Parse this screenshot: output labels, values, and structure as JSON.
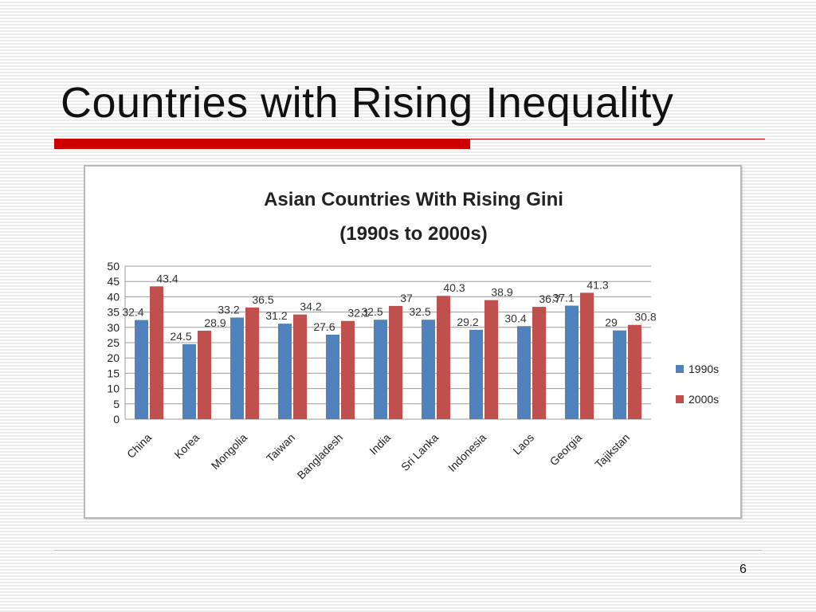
{
  "slide": {
    "title": "Countries with Rising Inequality",
    "page_number": "6"
  },
  "colors": {
    "accent_red": "#cc0000",
    "series_1990s": "#4f81bd",
    "series_2000s": "#c0504d"
  },
  "chart_data": {
    "type": "bar",
    "title": "Asian Countries With Rising Gini",
    "subtitle": "(1990s to 2000s)",
    "xlabel": "",
    "ylabel": "",
    "categories": [
      "China",
      "Korea",
      "Mongolia",
      "Taiwan",
      "Bangladesh",
      "India",
      "Sri Lanka",
      "Indonesia",
      "Laos",
      "Georgia",
      "Tajikstan"
    ],
    "series": [
      {
        "name": "1990s",
        "color": "#4f81bd",
        "values": [
          32.4,
          24.5,
          33.2,
          31.2,
          27.6,
          32.5,
          32.5,
          29.2,
          30.4,
          37.1,
          29
        ]
      },
      {
        "name": "2000s",
        "color": "#c0504d",
        "values": [
          43.4,
          28.9,
          36.5,
          34.2,
          32.1,
          37,
          40.3,
          38.9,
          36.7,
          41.3,
          30.8
        ]
      }
    ],
    "ylim": [
      0,
      50
    ],
    "yticks": [
      0,
      5,
      10,
      15,
      20,
      25,
      30,
      35,
      40,
      45,
      50
    ],
    "grid": true,
    "legend_position": "right"
  }
}
